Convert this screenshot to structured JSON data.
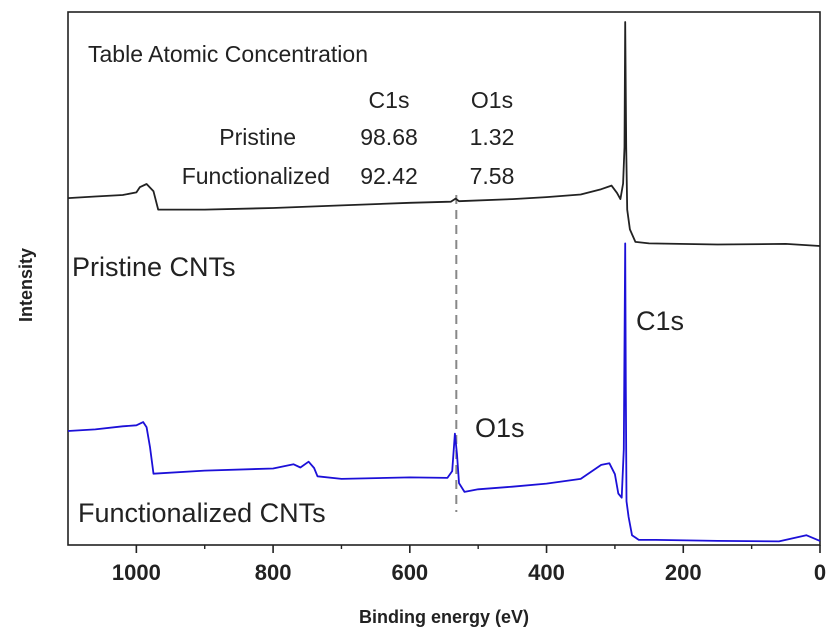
{
  "chart_data": {
    "type": "line",
    "title": "",
    "xlabel": "Binding energy (eV)",
    "ylabel": "Intensity",
    "xlim": [
      1100,
      0
    ],
    "x_reversed": true,
    "x_ticks": [
      1000,
      800,
      600,
      400,
      200,
      0
    ],
    "x_tick_labels": [
      "1000",
      "800",
      "600",
      "400",
      "200",
      "0"
    ],
    "ylim": [
      0,
      100
    ],
    "y_units": "arbitrary",
    "grid": false,
    "legend": "none",
    "series": [
      {
        "name": "Pristine CNTs",
        "color": "#222222",
        "points": [
          [
            1100,
            66.2
          ],
          [
            1060,
            66.5
          ],
          [
            1020,
            66.8
          ],
          [
            1000,
            67.3
          ],
          [
            995,
            68.3
          ],
          [
            985,
            68.9
          ],
          [
            975,
            67.5
          ],
          [
            968,
            64.0
          ],
          [
            900,
            64.0
          ],
          [
            800,
            64.3
          ],
          [
            700,
            64.8
          ],
          [
            600,
            65.3
          ],
          [
            540,
            65.5
          ],
          [
            533,
            66.1
          ],
          [
            528,
            65.6
          ],
          [
            450,
            66.0
          ],
          [
            400,
            66.4
          ],
          [
            350,
            66.9
          ],
          [
            320,
            67.9
          ],
          [
            305,
            68.6
          ],
          [
            297,
            67.2
          ],
          [
            292,
            66.0
          ],
          [
            288,
            69.0
          ],
          [
            286,
            76.0
          ],
          [
            285,
            100.0
          ],
          [
            283.5,
            76.0
          ],
          [
            282,
            64.0
          ],
          [
            278,
            60.2
          ],
          [
            270,
            57.8
          ],
          [
            250,
            57.5
          ],
          [
            150,
            57.3
          ],
          [
            50,
            57.4
          ],
          [
            0,
            57.0
          ]
        ]
      },
      {
        "name": "Functionalized CNTs",
        "color": "#1c10d8",
        "points": [
          [
            1100,
            21.5
          ],
          [
            1060,
            21.8
          ],
          [
            1020,
            22.4
          ],
          [
            1000,
            22.6
          ],
          [
            990,
            23.2
          ],
          [
            985,
            22.2
          ],
          [
            980,
            18.4
          ],
          [
            975,
            13.3
          ],
          [
            900,
            13.9
          ],
          [
            800,
            14.3
          ],
          [
            770,
            15.1
          ],
          [
            760,
            14.5
          ],
          [
            748,
            15.6
          ],
          [
            740,
            14.4
          ],
          [
            735,
            12.8
          ],
          [
            700,
            12.3
          ],
          [
            600,
            12.6
          ],
          [
            545,
            12.5
          ],
          [
            538,
            13.8
          ],
          [
            534,
            21.0
          ],
          [
            531,
            17.0
          ],
          [
            528,
            11.5
          ],
          [
            520,
            9.8
          ],
          [
            500,
            10.3
          ],
          [
            450,
            10.8
          ],
          [
            400,
            11.4
          ],
          [
            350,
            12.3
          ],
          [
            320,
            15.0
          ],
          [
            308,
            15.3
          ],
          [
            300,
            13.2
          ],
          [
            295,
            9.5
          ],
          [
            290,
            8.7
          ],
          [
            287,
            18.0
          ],
          [
            285,
            57.5
          ],
          [
            284,
            30.0
          ],
          [
            283,
            8.0
          ],
          [
            280,
            5.0
          ],
          [
            275,
            1.5
          ],
          [
            265,
            0.6
          ],
          [
            240,
            0.6
          ],
          [
            150,
            0.4
          ],
          [
            60,
            0.3
          ],
          [
            20,
            1.5
          ],
          [
            0,
            0.4
          ]
        ]
      }
    ],
    "annotations": {
      "pristine_label": "Pristine CNTs",
      "functionalized_label": "Functionalized CNTs",
      "c1s_label": "C1s",
      "o1s_label": "O1s",
      "o1s_marker_x": 532
    },
    "inset_table": {
      "title": "Table Atomic Concentration",
      "columns": [
        "C1s",
        "O1s"
      ],
      "rows": [
        {
          "label": "Pristine",
          "values": [
            "98.68",
            "1.32"
          ]
        },
        {
          "label": "Functionalized",
          "values": [
            "92.42",
            "7.58"
          ]
        }
      ],
      "highlight_color": "#ee1c24"
    }
  }
}
